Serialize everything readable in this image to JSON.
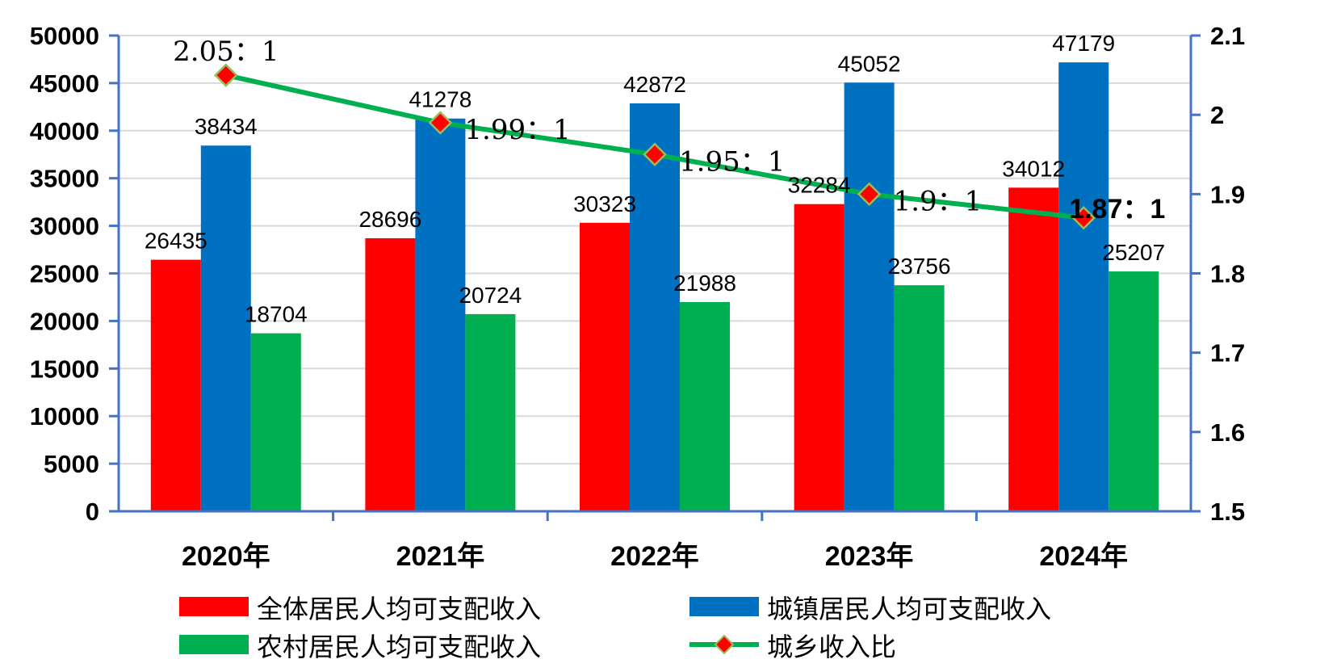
{
  "chart_data": {
    "type": "bar",
    "categories": [
      "2020年",
      "2021年",
      "2022年",
      "2023年",
      "2024年"
    ],
    "series": [
      {
        "name": "全体居民人均可支配收入",
        "type": "bar",
        "color": "#ff0000",
        "values": [
          26435,
          28696,
          30323,
          32284,
          34012
        ]
      },
      {
        "name": "城镇居民人均可支配收入",
        "type": "bar",
        "color": "#0070c0",
        "values": [
          38434,
          41278,
          42872,
          45052,
          47179
        ]
      },
      {
        "name": "农村居民人均可支配收入",
        "type": "bar",
        "color": "#00b050",
        "values": [
          18704,
          20724,
          21988,
          23756,
          25207
        ]
      },
      {
        "name": "城乡收入比",
        "type": "line",
        "axis": "right",
        "color": "#00b050",
        "marker_color": "#ff0000",
        "values": [
          2.05,
          1.99,
          1.95,
          1.9,
          1.87
        ],
        "labels": [
          "2.05：1",
          "1.99：1",
          "1.95：1",
          "1.9：1",
          "1.87：1"
        ]
      }
    ],
    "left_axis": {
      "ylim": [
        0,
        50000
      ],
      "ticks": [
        "50000",
        "45000",
        "40000",
        "35000",
        "30000",
        "25000",
        "20000",
        "15000",
        "10000",
        "5000",
        "0"
      ]
    },
    "right_axis": {
      "ylim": [
        1.5,
        2.1
      ],
      "ticks": [
        "2.1",
        "2",
        "1.9",
        "1.8",
        "1.7",
        "1.6",
        "1.5"
      ]
    },
    "title": "",
    "grid": true,
    "legend_position": "bottom",
    "axis_color": "#4472c4",
    "grid_color": "#d9d9d9"
  }
}
